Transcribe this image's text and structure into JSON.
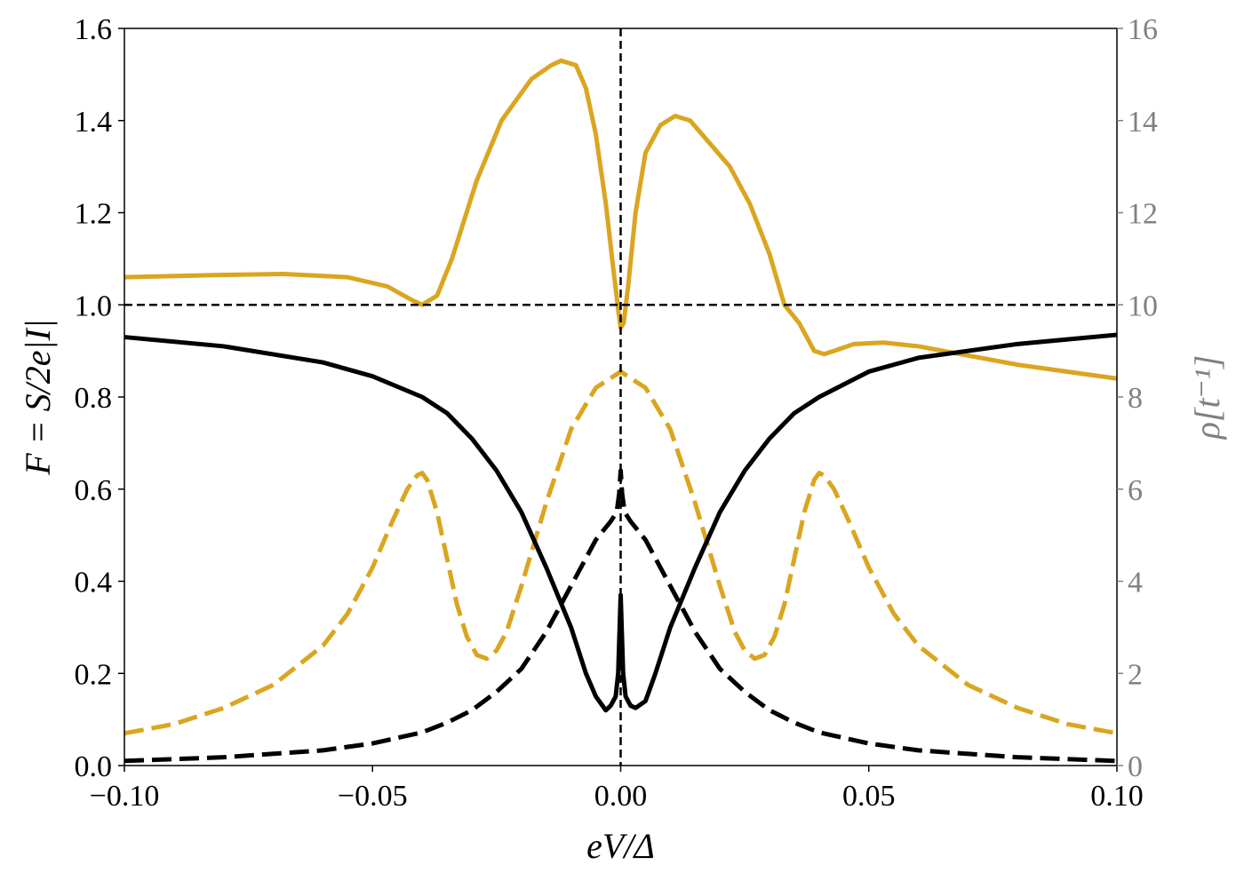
{
  "chart_data": {
    "type": "line",
    "xlabel": "eV/Δ",
    "ylabel_left": "F = S/2e|I|",
    "ylabel_right": "ρ[t⁻¹]",
    "xlim": [
      -0.1,
      0.1
    ],
    "ylim_left": [
      0,
      1.6
    ],
    "ylim_right": [
      0,
      16
    ],
    "x_ticks": [
      -0.1,
      -0.05,
      0.0,
      0.05,
      0.1
    ],
    "x_tick_labels": [
      "−0.10",
      "−0.05",
      "0.00",
      "0.05",
      "0.10"
    ],
    "y_ticks_left": [
      0.0,
      0.2,
      0.4,
      0.6,
      0.8,
      1.0,
      1.2,
      1.4,
      1.6
    ],
    "y_tick_labels_left": [
      "0.0",
      "0.2",
      "0.4",
      "0.6",
      "0.8",
      "1.0",
      "1.2",
      "1.4",
      "1.6"
    ],
    "y_ticks_right": [
      0,
      2,
      4,
      6,
      8,
      10,
      12,
      14,
      16
    ],
    "y_tick_labels_right": [
      "0",
      "2",
      "4",
      "6",
      "8",
      "10",
      "12",
      "14",
      "16"
    ],
    "grid": false,
    "legend": "none",
    "reference_lines": [
      {
        "orientation": "horizontal",
        "axis": "left",
        "value": 1.0,
        "style": "dashed",
        "color": "#000000"
      },
      {
        "orientation": "vertical",
        "value": 0.0,
        "style": "dashed",
        "color": "#000000"
      }
    ],
    "colors": {
      "gold": "#DAA520",
      "black": "#000000",
      "right_axis": "#808080"
    },
    "series": [
      {
        "axis": "left",
        "color": "#DAA520",
        "style": "solid",
        "x": [
          -0.1,
          -0.08,
          -0.068,
          -0.055,
          -0.047,
          -0.042,
          -0.04,
          -0.037,
          -0.034,
          -0.029,
          -0.024,
          -0.018,
          -0.014,
          -0.012,
          -0.009,
          -0.007,
          -0.005,
          -0.003,
          -0.0015,
          -0.0005,
          0.0,
          0.0006,
          0.0015,
          0.003,
          0.005,
          0.008,
          0.011,
          0.014,
          0.018,
          0.022,
          0.026,
          0.03,
          0.033,
          0.036,
          0.039,
          0.041,
          0.043,
          0.047,
          0.053,
          0.06,
          0.07,
          0.08,
          0.09,
          0.1
        ],
        "y": [
          1.06,
          1.065,
          1.067,
          1.06,
          1.04,
          1.01,
          1.0,
          1.02,
          1.1,
          1.27,
          1.4,
          1.49,
          1.52,
          1.53,
          1.52,
          1.47,
          1.37,
          1.22,
          1.08,
          0.99,
          0.95,
          0.96,
          1.04,
          1.2,
          1.33,
          1.39,
          1.41,
          1.4,
          1.35,
          1.3,
          1.22,
          1.11,
          1.0,
          0.96,
          0.9,
          0.893,
          0.9,
          0.915,
          0.918,
          0.91,
          0.89,
          0.87,
          0.855,
          0.84
        ]
      },
      {
        "axis": "right",
        "color": "#DAA520",
        "style": "dashed",
        "x": [
          -0.1,
          -0.09,
          -0.08,
          -0.07,
          -0.06,
          -0.055,
          -0.05,
          -0.046,
          -0.043,
          -0.041,
          -0.04,
          -0.039,
          -0.037,
          -0.035,
          -0.033,
          -0.031,
          -0.029,
          -0.027,
          -0.025,
          -0.023,
          -0.02,
          -0.015,
          -0.01,
          -0.005,
          0.0,
          0.005,
          0.01,
          0.015,
          0.02,
          0.023,
          0.025,
          0.027,
          0.029,
          0.031,
          0.033,
          0.035,
          0.037,
          0.039,
          0.04,
          0.041,
          0.043,
          0.046,
          0.05,
          0.055,
          0.06,
          0.07,
          0.08,
          0.09,
          0.1
        ],
        "y": [
          0.7,
          0.9,
          1.25,
          1.75,
          2.6,
          3.3,
          4.3,
          5.3,
          6.0,
          6.3,
          6.35,
          6.2,
          5.5,
          4.5,
          3.5,
          2.8,
          2.4,
          2.32,
          2.5,
          2.9,
          3.9,
          5.7,
          7.3,
          8.2,
          8.55,
          8.2,
          7.3,
          5.7,
          3.9,
          2.9,
          2.5,
          2.32,
          2.4,
          2.8,
          3.5,
          4.5,
          5.5,
          6.2,
          6.35,
          6.3,
          6.0,
          5.3,
          4.3,
          3.3,
          2.6,
          1.75,
          1.25,
          0.9,
          0.7
        ]
      },
      {
        "axis": "left",
        "color": "#000000",
        "style": "solid",
        "x": [
          -0.1,
          -0.08,
          -0.06,
          -0.05,
          -0.04,
          -0.035,
          -0.03,
          -0.025,
          -0.02,
          -0.015,
          -0.01,
          -0.007,
          -0.005,
          -0.003,
          -0.002,
          -0.001,
          -0.0005,
          -0.0002,
          0.0,
          0.0002,
          0.0005,
          0.001,
          0.002,
          0.003,
          0.005,
          0.007,
          0.01,
          0.015,
          0.02,
          0.025,
          0.03,
          0.035,
          0.04,
          0.05,
          0.06,
          0.08,
          0.1
        ],
        "y": [
          0.93,
          0.91,
          0.875,
          0.845,
          0.8,
          0.765,
          0.71,
          0.64,
          0.55,
          0.43,
          0.3,
          0.2,
          0.15,
          0.12,
          0.13,
          0.15,
          0.2,
          0.3,
          0.37,
          0.3,
          0.2,
          0.15,
          0.13,
          0.125,
          0.14,
          0.2,
          0.3,
          0.43,
          0.55,
          0.64,
          0.71,
          0.765,
          0.8,
          0.855,
          0.885,
          0.915,
          0.935
        ]
      },
      {
        "axis": "right",
        "color": "#000000",
        "style": "dashed",
        "x": [
          -0.1,
          -0.08,
          -0.06,
          -0.05,
          -0.04,
          -0.035,
          -0.03,
          -0.025,
          -0.02,
          -0.015,
          -0.01,
          -0.005,
          -0.002,
          -0.0008,
          -0.0003,
          0.0,
          0.0003,
          0.0008,
          0.002,
          0.005,
          0.01,
          0.015,
          0.02,
          0.025,
          0.03,
          0.035,
          0.04,
          0.05,
          0.06,
          0.08,
          0.1
        ],
        "y": [
          0.1,
          0.18,
          0.33,
          0.48,
          0.72,
          0.93,
          1.2,
          1.6,
          2.1,
          2.9,
          3.9,
          4.9,
          5.3,
          5.5,
          5.9,
          6.4,
          5.9,
          5.5,
          5.3,
          4.9,
          3.9,
          2.9,
          2.1,
          1.6,
          1.2,
          0.93,
          0.72,
          0.48,
          0.33,
          0.18,
          0.1
        ]
      }
    ]
  }
}
